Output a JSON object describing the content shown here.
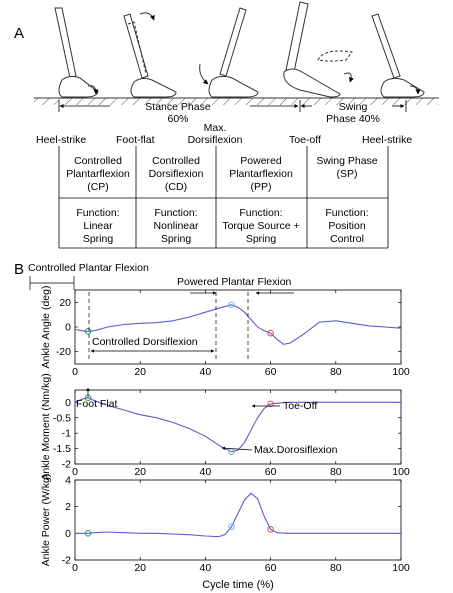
{
  "panel_a": {
    "label": "A",
    "stance": {
      "label": "Stance Phase",
      "percent": "60%"
    },
    "swing": {
      "label": "Swing",
      "percent": "Phase 40%"
    },
    "events": [
      "Heel-strike",
      "Foot-flat",
      "Max.",
      "Dorsiflexion",
      "Toe-off",
      "Heel-strike"
    ],
    "phases": [
      {
        "name": [
          "Controlled",
          "Plantarflexion",
          "(CP)"
        ],
        "function": [
          "Function:",
          "Linear",
          "Spring"
        ]
      },
      {
        "name": [
          "Controlled",
          "Dorsiflexion",
          "(CD)"
        ],
        "function": [
          "Function:",
          "Nonlinear",
          "Spring"
        ]
      },
      {
        "name": [
          "Powered",
          "Plantarflexion",
          "(PP)"
        ],
        "function": [
          "Function:",
          "Torque Source +",
          "Spring"
        ]
      },
      {
        "name": [
          "Swing Phase",
          "(SP)"
        ],
        "function": [
          "Function:",
          "Position",
          "Control"
        ]
      }
    ]
  },
  "panel_b": {
    "label": "B",
    "annotations": {
      "cpf": "Controlled Plantar Flexion",
      "ppf": "Powered Plantar Flexion",
      "cdf": "Controlled Dorsiflexion",
      "foot_flat": "Foot Flat",
      "toe_off": "Toe-Off",
      "max_dorsi": "Max.Dorosiflexion"
    },
    "xlabel": "Cycle time (%)"
  },
  "chart_data": [
    {
      "type": "line",
      "ylabel": "Ankle Angle (deg)",
      "xlim": [
        0,
        100
      ],
      "ylim": [
        -30,
        30
      ],
      "xticks": [
        0,
        20,
        40,
        60,
        80,
        100
      ],
      "yticks": [
        20,
        0,
        -20
      ],
      "x": [
        0,
        2,
        4,
        6,
        10,
        15,
        20,
        25,
        30,
        35,
        40,
        45,
        48,
        50,
        52,
        54,
        56,
        58,
        60,
        62,
        64,
        66,
        70,
        75,
        80,
        85,
        90,
        95,
        100
      ],
      "series": [
        {
          "values": [
            -2,
            -3,
            -3.5,
            -3,
            0,
            2,
            3,
            3.5,
            5,
            8,
            12,
            16,
            18,
            16,
            12,
            6,
            0,
            -3,
            -5,
            -10,
            -14,
            -13,
            -6,
            4,
            5,
            3,
            1,
            0,
            -1
          ],
          "color": "#5b5bd6"
        }
      ],
      "markers": [
        {
          "x": 4,
          "y": -3.5,
          "color": "#2e9e4f"
        },
        {
          "x": 48,
          "y": 18,
          "color": "#7db7e8"
        },
        {
          "x": 60,
          "y": -5,
          "color": "#d9534f"
        }
      ]
    },
    {
      "type": "line",
      "ylabel": "Ankle Moment (Nm/kg)",
      "xlim": [
        0,
        100
      ],
      "ylim": [
        -2,
        0.4
      ],
      "xticks": [
        0,
        20,
        40,
        60,
        80,
        100
      ],
      "yticks": [
        0,
        -0.5,
        -1,
        -1.5,
        -2
      ],
      "x": [
        0,
        2,
        4,
        6,
        10,
        15,
        20,
        25,
        30,
        35,
        40,
        45,
        48,
        50,
        52,
        54,
        56,
        58,
        60,
        65,
        70,
        80,
        90,
        100
      ],
      "series": [
        {
          "values": [
            0,
            0.1,
            0.15,
            0.05,
            -0.1,
            -0.25,
            -0.4,
            -0.5,
            -0.65,
            -0.85,
            -1.1,
            -1.45,
            -1.6,
            -1.55,
            -1.3,
            -0.9,
            -0.5,
            -0.2,
            -0.05,
            0,
            0,
            0,
            0,
            0
          ],
          "color": "#5b5bd6"
        }
      ],
      "markers": [
        {
          "x": 4,
          "y": 0.15,
          "color": "#2e9e4f"
        },
        {
          "x": 48,
          "y": -1.6,
          "color": "#7db7e8"
        },
        {
          "x": 60,
          "y": -0.05,
          "color": "#d9534f"
        }
      ]
    },
    {
      "type": "line",
      "ylabel": "Ankle Power (W/kg)",
      "xlim": [
        0,
        100
      ],
      "ylim": [
        -2,
        4
      ],
      "xticks": [
        0,
        20,
        40,
        60,
        80,
        100
      ],
      "yticks": [
        4,
        2,
        0,
        -2
      ],
      "x": [
        0,
        2,
        4,
        6,
        10,
        15,
        20,
        25,
        30,
        35,
        40,
        44,
        46,
        48,
        50,
        52,
        54,
        56,
        58,
        60,
        62,
        65,
        70,
        80,
        90,
        100
      ],
      "series": [
        {
          "values": [
            0,
            0,
            0,
            0.05,
            0.1,
            0.05,
            0,
            0,
            -0.05,
            -0.1,
            -0.2,
            -0.25,
            -0.1,
            0.5,
            1.5,
            2.5,
            3,
            2.6,
            1.3,
            0.3,
            0.05,
            0,
            0,
            0,
            0,
            0
          ],
          "color": "#5b5bd6"
        }
      ],
      "markers": [
        {
          "x": 4,
          "y": 0,
          "color": "#2e9e4f"
        },
        {
          "x": 48,
          "y": 0.5,
          "color": "#7db7e8"
        },
        {
          "x": 60,
          "y": 0.3,
          "color": "#d9534f"
        }
      ]
    }
  ]
}
